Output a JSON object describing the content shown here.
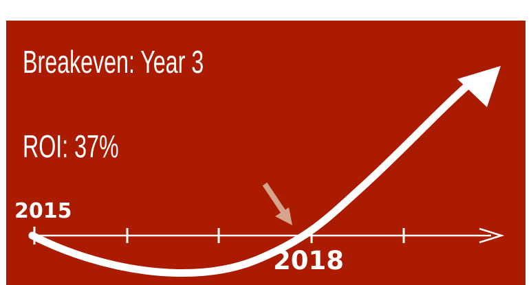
{
  "headline": {
    "breakeven": "Breakeven: Year 3",
    "roi": "ROI: 37%"
  },
  "timeline": {
    "start_label": "2015",
    "breakeven_label": "2018"
  },
  "colors": {
    "panel": "#ab1b00",
    "foreground": "#ffffff",
    "pointer_arrow": "#d6a48a"
  }
}
